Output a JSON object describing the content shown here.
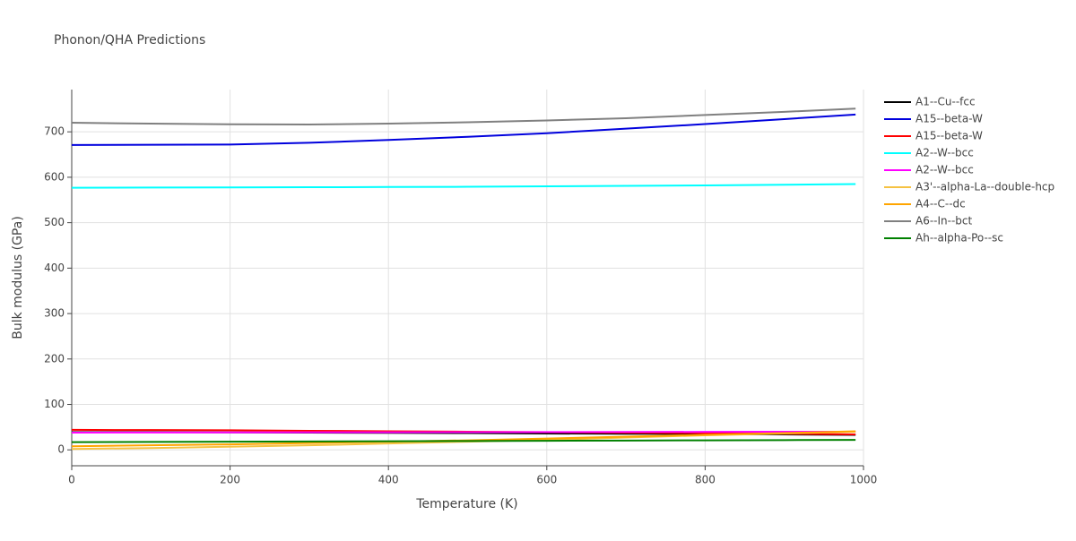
{
  "chart_data": {
    "type": "line",
    "title": "Phonon/QHA Predictions",
    "x_label": "Temperature (K)",
    "y_label": "Bulk modulus (GPa)",
    "x": [
      0,
      100,
      200,
      300,
      400,
      500,
      600,
      700,
      800,
      900,
      990
    ],
    "series": [
      {
        "name": "A1--Cu--fcc",
        "color": "#000000",
        "values": [
          39,
          39,
          38.5,
          38,
          37.5,
          37,
          36,
          35.5,
          35,
          34,
          33
        ]
      },
      {
        "name": "A15--beta-W",
        "color": "#0000dd",
        "values": [
          671,
          671.5,
          672,
          676,
          682,
          689,
          697,
          707,
          717,
          728,
          738
        ]
      },
      {
        "name": "A15--beta-W",
        "color": "#ff0000",
        "values": [
          44,
          43.5,
          43,
          42,
          41,
          40,
          39,
          38,
          37,
          35.5,
          34
        ]
      },
      {
        "name": "A2--W--bcc",
        "color": "#00ffff",
        "values": [
          577,
          577.3,
          577.6,
          578,
          578.5,
          579,
          580,
          581,
          582,
          583.5,
          585
        ]
      },
      {
        "name": "A2--W--bcc",
        "color": "#ff00ff",
        "values": [
          38,
          38.2,
          38.4,
          38.6,
          38.8,
          39,
          39.2,
          39.4,
          39.6,
          39.8,
          40
        ]
      },
      {
        "name": "A3'--alpha-La--double-hcp",
        "color": "#f5c242",
        "values": [
          2,
          4,
          7,
          10,
          14,
          18,
          22,
          27,
          32,
          36,
          40
        ]
      },
      {
        "name": "A4--C--dc",
        "color": "#ffa500",
        "values": [
          8,
          10,
          12,
          15,
          18,
          21,
          25,
          29,
          33,
          37,
          41
        ]
      },
      {
        "name": "A6--In--bct",
        "color": "#808080",
        "values": [
          720,
          718,
          716.5,
          716,
          718,
          721,
          725,
          730,
          737,
          744,
          751
        ]
      },
      {
        "name": "Ah--alpha-Po--sc",
        "color": "#008000",
        "values": [
          17,
          17.5,
          18,
          18.5,
          19,
          19.5,
          20,
          20.5,
          21,
          21.5,
          22
        ]
      }
    ],
    "xlim": [
      0,
      1000
    ],
    "ylim": [
      -35,
      793
    ],
    "xticks": [
      0,
      200,
      400,
      600,
      800,
      1000
    ],
    "yticks": [
      0,
      100,
      200,
      300,
      400,
      500,
      600,
      700
    ],
    "grid": true,
    "legend": "right"
  }
}
